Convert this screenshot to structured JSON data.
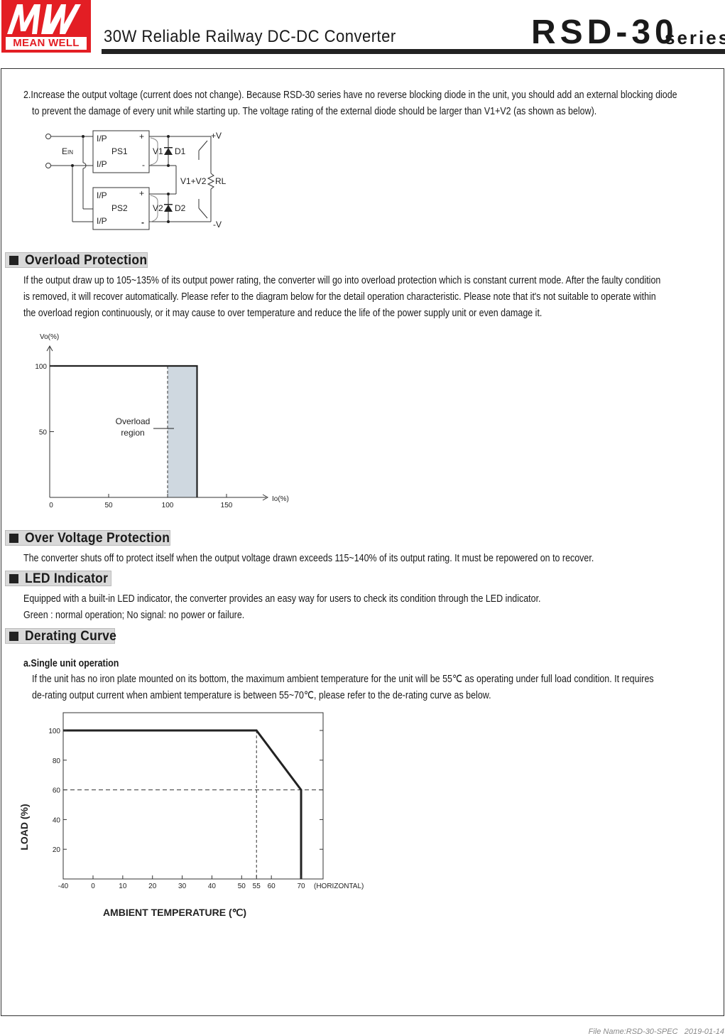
{
  "header": {
    "logo_text": "MEAN WELL",
    "logo_mark": "MW",
    "title": "30W Reliable Railway DC-DC Converter",
    "series_name": "RSD-30",
    "series_suffix": "series",
    "brand_color": "#e31e24"
  },
  "intro": {
    "lines": [
      "2.Increase the output voltage (current does not change). Because RSD-30 series have no reverse blocking diode in the unit, you should add an external blocking diode",
      "to prevent the damage of every unit while starting up. The voltage rating of the external diode should be larger than V1+V2 (as shown as below)."
    ]
  },
  "circuit": {
    "ein": "E",
    "ein_sub": "IN",
    "ps1": "PS1",
    "ps2": "PS2",
    "ip": "I/P",
    "plus": "+",
    "minus": "-",
    "v1": "V1",
    "v2": "V2",
    "d1": "D1",
    "d2": "D2",
    "v1v2": "V1+V2",
    "rl": "RL",
    "pos_v": "+V",
    "neg_v": "-V"
  },
  "overload": {
    "heading": "Overload Protection",
    "lines": [
      "If the output draw up to 105~135% of its output power rating, the converter will go into overload protection  which is constant current mode. After the faulty condition",
      "is removed, it will recover automatically. Please refer to the diagram below for the detail operation characteristic. Please note that it's not suitable to operate within",
      "the overload region continuously, or it may cause to over temperature and reduce the life of the power supply unit or even damage it."
    ]
  },
  "ovp": {
    "heading": "Over Voltage Protection",
    "lines": [
      "The converter shuts off to protect itself when the output voltage drawn exceeds 115~140% of its output rating. It must be repowered on to recover."
    ]
  },
  "led": {
    "heading": "LED Indicator",
    "lines": [
      "Equipped with a built-in LED indicator, the converter provides an easy way for users to check its condition through the LED indicator.",
      "Green : normal operation; No signal: no power or failure."
    ]
  },
  "derating": {
    "heading": "Derating Curve",
    "subheading": "a.Single unit operation",
    "lines": [
      "If the unit has no iron plate mounted on its bottom, the maximum ambient temperature for the unit will be 55℃ as operating under full load condition. It requires",
      "de-rating output current when ambient temperature is between 55~70℃, please refer to the de-rating curve as below."
    ]
  },
  "chart_data": [
    {
      "type": "line",
      "xlabel": "Io(%)",
      "ylabel": "Vo(%)",
      "x_ticks": [
        "0",
        "50",
        "100",
        "150"
      ],
      "y_ticks": [
        "50",
        "100"
      ],
      "xlim": [
        0,
        180
      ],
      "ylim": [
        0,
        100
      ],
      "series": [
        {
          "x": [
            0,
            125,
            125
          ],
          "y": [
            100,
            100,
            0
          ]
        }
      ],
      "reference_lines": [
        {
          "x": 100,
          "style": "dashed"
        }
      ],
      "shaded_region": {
        "x": [
          100,
          125
        ],
        "y": [
          0,
          100
        ],
        "color": "#cfd8e0"
      },
      "annotation": [
        "Overload",
        "region"
      ]
    },
    {
      "type": "line",
      "xlabel": "AMBIENT TEMPERATURE (℃)",
      "ylabel": "LOAD (%)",
      "x_suffix": "(HORIZONTAL)",
      "x_ticks": [
        "-40",
        "0",
        "10",
        "20",
        "30",
        "40",
        "50",
        "55",
        "60",
        "70"
      ],
      "y_ticks": [
        "20",
        "40",
        "60",
        "80",
        "100"
      ],
      "xlim": [
        -40,
        77
      ],
      "ylim": [
        0,
        112
      ],
      "series": [
        {
          "x": [
            -40,
            55,
            70,
            70
          ],
          "y": [
            100,
            100,
            60,
            0
          ]
        }
      ],
      "reference_lines": [
        {
          "y": 60,
          "style": "dashed"
        },
        {
          "x": 55,
          "style": "dashed"
        }
      ]
    }
  ],
  "footer": {
    "file_name": "File Name:RSD-30-SPEC",
    "date": "2019-01-14"
  }
}
